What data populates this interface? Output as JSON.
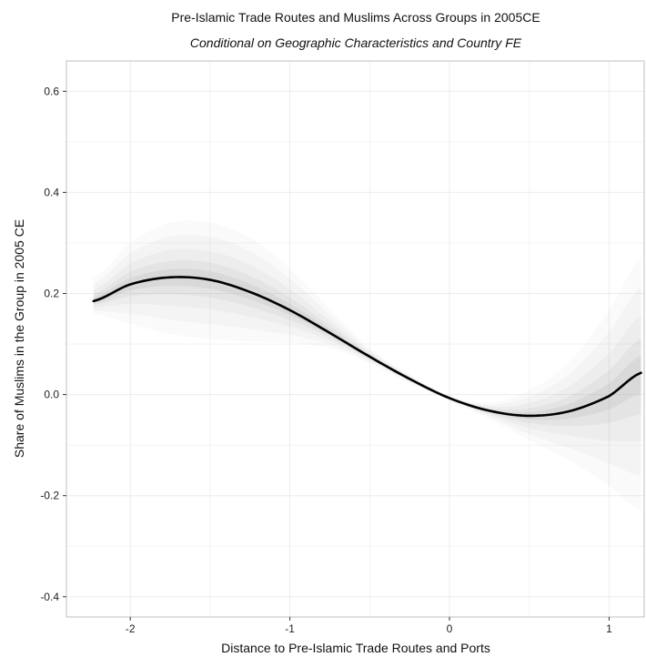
{
  "chart_data": {
    "type": "line",
    "title": "Pre-Islamic Trade Routes and Muslims Across Groups in 2005CE",
    "subtitle": "Conditional on Geographic Characteristics and Country FE",
    "xlabel": "Distance to Pre-Islamic Trade Routes and Ports",
    "ylabel": "Share of Muslims in the Group in 2005 CE",
    "xlim": [
      -2.4,
      1.22
    ],
    "ylim": [
      -0.44,
      0.66
    ],
    "x_ticks": [
      -2,
      -1,
      0,
      1
    ],
    "x_tick_labels": [
      "-2",
      "-1",
      "0",
      "1"
    ],
    "y_ticks": [
      -0.4,
      -0.2,
      0.0,
      0.2,
      0.4,
      0.6
    ],
    "y_tick_labels": [
      "-0.4",
      "-0.2",
      "0.0",
      "0.2",
      "0.4",
      "0.6"
    ],
    "grid": true,
    "series": [
      {
        "x": [
          -2.23,
          -2.0,
          -1.75,
          -1.5,
          -1.25,
          -1.0,
          -0.75,
          -0.5,
          -0.25,
          0.0,
          0.25,
          0.5,
          0.75,
          1.0,
          1.2
        ],
        "y": [
          0.185,
          0.218,
          0.232,
          0.227,
          0.203,
          0.167,
          0.122,
          0.075,
          0.031,
          -0.007,
          -0.032,
          -0.042,
          -0.033,
          -0.003,
          0.043
        ],
        "lower": [
          0.16,
          0.14,
          0.12,
          0.11,
          0.105,
          0.102,
          0.092,
          0.062,
          0.023,
          -0.012,
          -0.048,
          -0.09,
          -0.13,
          -0.18,
          -0.23
        ],
        "upper": [
          0.23,
          0.3,
          0.34,
          0.34,
          0.31,
          0.25,
          0.17,
          0.092,
          0.04,
          -0.002,
          -0.016,
          0.008,
          0.065,
          0.165,
          0.27
        ],
        "color": "#000000"
      }
    ],
    "colors": {
      "panel_border": "#bfbfbf",
      "grid": "#ececec",
      "line": "#000000",
      "band": "#b0b0b0"
    }
  }
}
